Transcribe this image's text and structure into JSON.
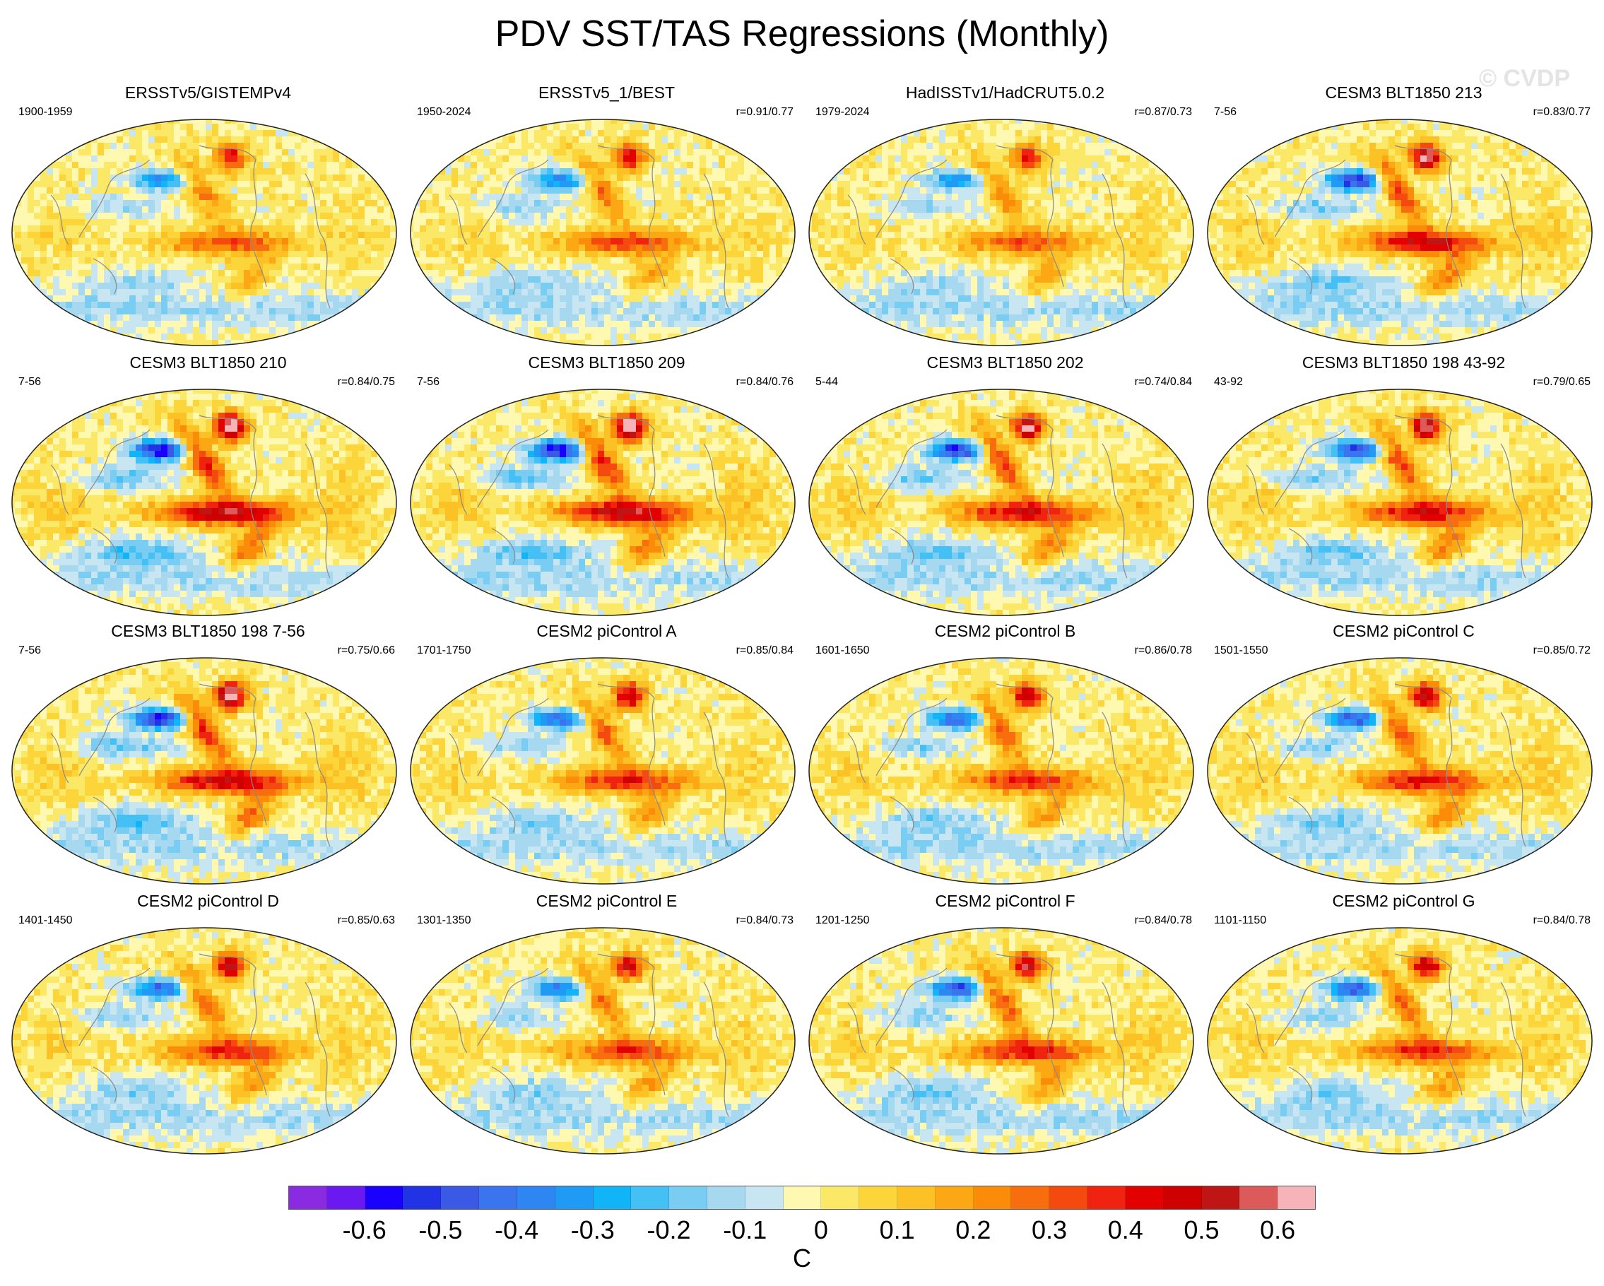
{
  "title": "PDV SST/TAS Regressions (Monthly)",
  "watermark": "© CVDP",
  "panels": [
    {
      "title": "ERSSTv5/GISTEMPv4",
      "years": "1900-1959",
      "r": "",
      "intensity": 0.55,
      "seed": 1
    },
    {
      "title": "ERSSTv5_1/BEST",
      "years": "1950-2024",
      "r": "r=0.91/0.77",
      "intensity": 0.6,
      "seed": 2
    },
    {
      "title": "HadISSTv1/HadCRUT5.0.2",
      "years": "1979-2024",
      "r": "r=0.87/0.73",
      "intensity": 0.55,
      "seed": 3
    },
    {
      "title": "CESM3 BLT1850 213",
      "years": "7-56",
      "r": "r=0.83/0.77",
      "intensity": 0.85,
      "seed": 4
    },
    {
      "title": "CESM3 BLT1850 210",
      "years": "7-56",
      "r": "r=0.84/0.75",
      "intensity": 0.95,
      "seed": 5
    },
    {
      "title": "CESM3 BLT1850 209",
      "years": "7-56",
      "r": "r=0.84/0.76",
      "intensity": 0.95,
      "seed": 6
    },
    {
      "title": "CESM3 BLT1850 202",
      "years": "5-44",
      "r": "r=0.74/0.84",
      "intensity": 0.85,
      "seed": 7
    },
    {
      "title": "CESM3 BLT1850 198 43-92",
      "years": "43-92",
      "r": "r=0.79/0.65",
      "intensity": 0.8,
      "seed": 8
    },
    {
      "title": "CESM3 BLT1850 198 7-56",
      "years": "7-56",
      "r": "r=0.75/0.66",
      "intensity": 0.9,
      "seed": 9
    },
    {
      "title": "CESM2 piControl A",
      "years": "1701-1750",
      "r": "r=0.85/0.84",
      "intensity": 0.7,
      "seed": 10
    },
    {
      "title": "CESM2 piControl B",
      "years": "1601-1650",
      "r": "r=0.86/0.78",
      "intensity": 0.7,
      "seed": 11
    },
    {
      "title": "CESM2 piControl C",
      "years": "1501-1550",
      "r": "r=0.85/0.72",
      "intensity": 0.75,
      "seed": 12
    },
    {
      "title": "CESM2 piControl D",
      "years": "1401-1450",
      "r": "r=0.85/0.63",
      "intensity": 0.7,
      "seed": 13
    },
    {
      "title": "CESM2 piControl E",
      "years": "1301-1350",
      "r": "r=0.84/0.73",
      "intensity": 0.65,
      "seed": 14
    },
    {
      "title": "CESM2 piControl F",
      "years": "1201-1250",
      "r": "r=0.84/0.78",
      "intensity": 0.75,
      "seed": 15
    },
    {
      "title": "CESM2 piControl G",
      "years": "1101-1150",
      "r": "r=0.84/0.78",
      "intensity": 0.7,
      "seed": 16
    }
  ],
  "colorbar": {
    "colors": [
      "#8a2be2",
      "#6a19f0",
      "#1a00ff",
      "#2233e6",
      "#3a5ae6",
      "#3a74ee",
      "#2e86f2",
      "#1f9af5",
      "#12b4f8",
      "#45c0f5",
      "#79ccf2",
      "#a6d8f0",
      "#c8e6f2",
      "#fff8b0",
      "#fbe866",
      "#fcd53a",
      "#fbc125",
      "#fca714",
      "#fb8c0a",
      "#f86d0d",
      "#f44a10",
      "#f02310",
      "#e30000",
      "#cf0000",
      "#bf1515",
      "#dd5a5a",
      "#f6b4b8"
    ],
    "labels": [
      "-0.6",
      "-0.5",
      "-0.4",
      "-0.3",
      "-0.2",
      "-0.1",
      "0",
      "0.1",
      "0.2",
      "0.3",
      "0.4",
      "0.5",
      "0.6"
    ],
    "unit": "C"
  }
}
